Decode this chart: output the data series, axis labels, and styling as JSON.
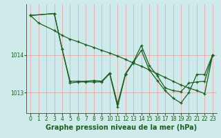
{
  "bg_color": "#ceeaea",
  "grid_color": "#f08080",
  "line_color": "#1a5e20",
  "title": "Graphe pression niveau de la mer (hPa)",
  "xlim": [
    -0.5,
    23.5
  ],
  "ylim": [
    1012.45,
    1015.35
  ],
  "yticks": [
    1013,
    1014
  ],
  "xticks": [
    0,
    1,
    2,
    3,
    4,
    5,
    6,
    7,
    8,
    9,
    10,
    11,
    12,
    13,
    14,
    15,
    16,
    17,
    18,
    19,
    20,
    21,
    22,
    23
  ],
  "line1_x": [
    0,
    1,
    3,
    4,
    5,
    6,
    7,
    8,
    9,
    10,
    11,
    12,
    13,
    14,
    15,
    16,
    17,
    18,
    19,
    20,
    21,
    22,
    23
  ],
  "line1_y": [
    1015.05,
    1014.85,
    1014.65,
    1014.52,
    1014.42,
    1014.35,
    1014.27,
    1014.2,
    1014.12,
    1014.05,
    1013.97,
    1013.88,
    1013.78,
    1013.7,
    1013.6,
    1013.5,
    1013.4,
    1013.3,
    1013.2,
    1013.12,
    1013.05,
    1012.97,
    1014.0
  ],
  "line2_x": [
    0,
    3,
    4,
    5,
    6,
    7,
    8,
    9,
    10,
    11,
    12,
    13,
    14,
    15,
    16,
    17,
    18,
    19,
    20,
    21,
    22,
    23
  ],
  "line2_y": [
    1015.05,
    1015.1,
    1014.15,
    1013.3,
    1013.3,
    1013.3,
    1013.32,
    1013.3,
    1013.52,
    1012.7,
    1013.5,
    1013.82,
    1014.25,
    1013.72,
    1013.45,
    1013.12,
    1013.05,
    1013.02,
    1013.25,
    1013.28,
    1013.3,
    1014.0
  ],
  "line3_x": [
    0,
    3,
    4,
    5,
    6,
    7,
    8,
    9,
    10,
    11,
    12,
    13,
    14,
    15,
    16,
    17,
    18,
    19,
    20,
    21,
    22,
    23
  ],
  "line3_y": [
    1015.05,
    1015.1,
    1014.15,
    1013.25,
    1013.28,
    1013.28,
    1013.28,
    1013.28,
    1013.5,
    1012.62,
    1013.48,
    1013.8,
    1014.12,
    1013.6,
    1013.32,
    1013.05,
    1012.85,
    1012.72,
    1013.0,
    1013.48,
    1013.48,
    1014.0
  ],
  "title_fontsize": 7.0,
  "tick_fontsize": 5.5,
  "figsize": [
    3.2,
    2.0
  ],
  "dpi": 100
}
